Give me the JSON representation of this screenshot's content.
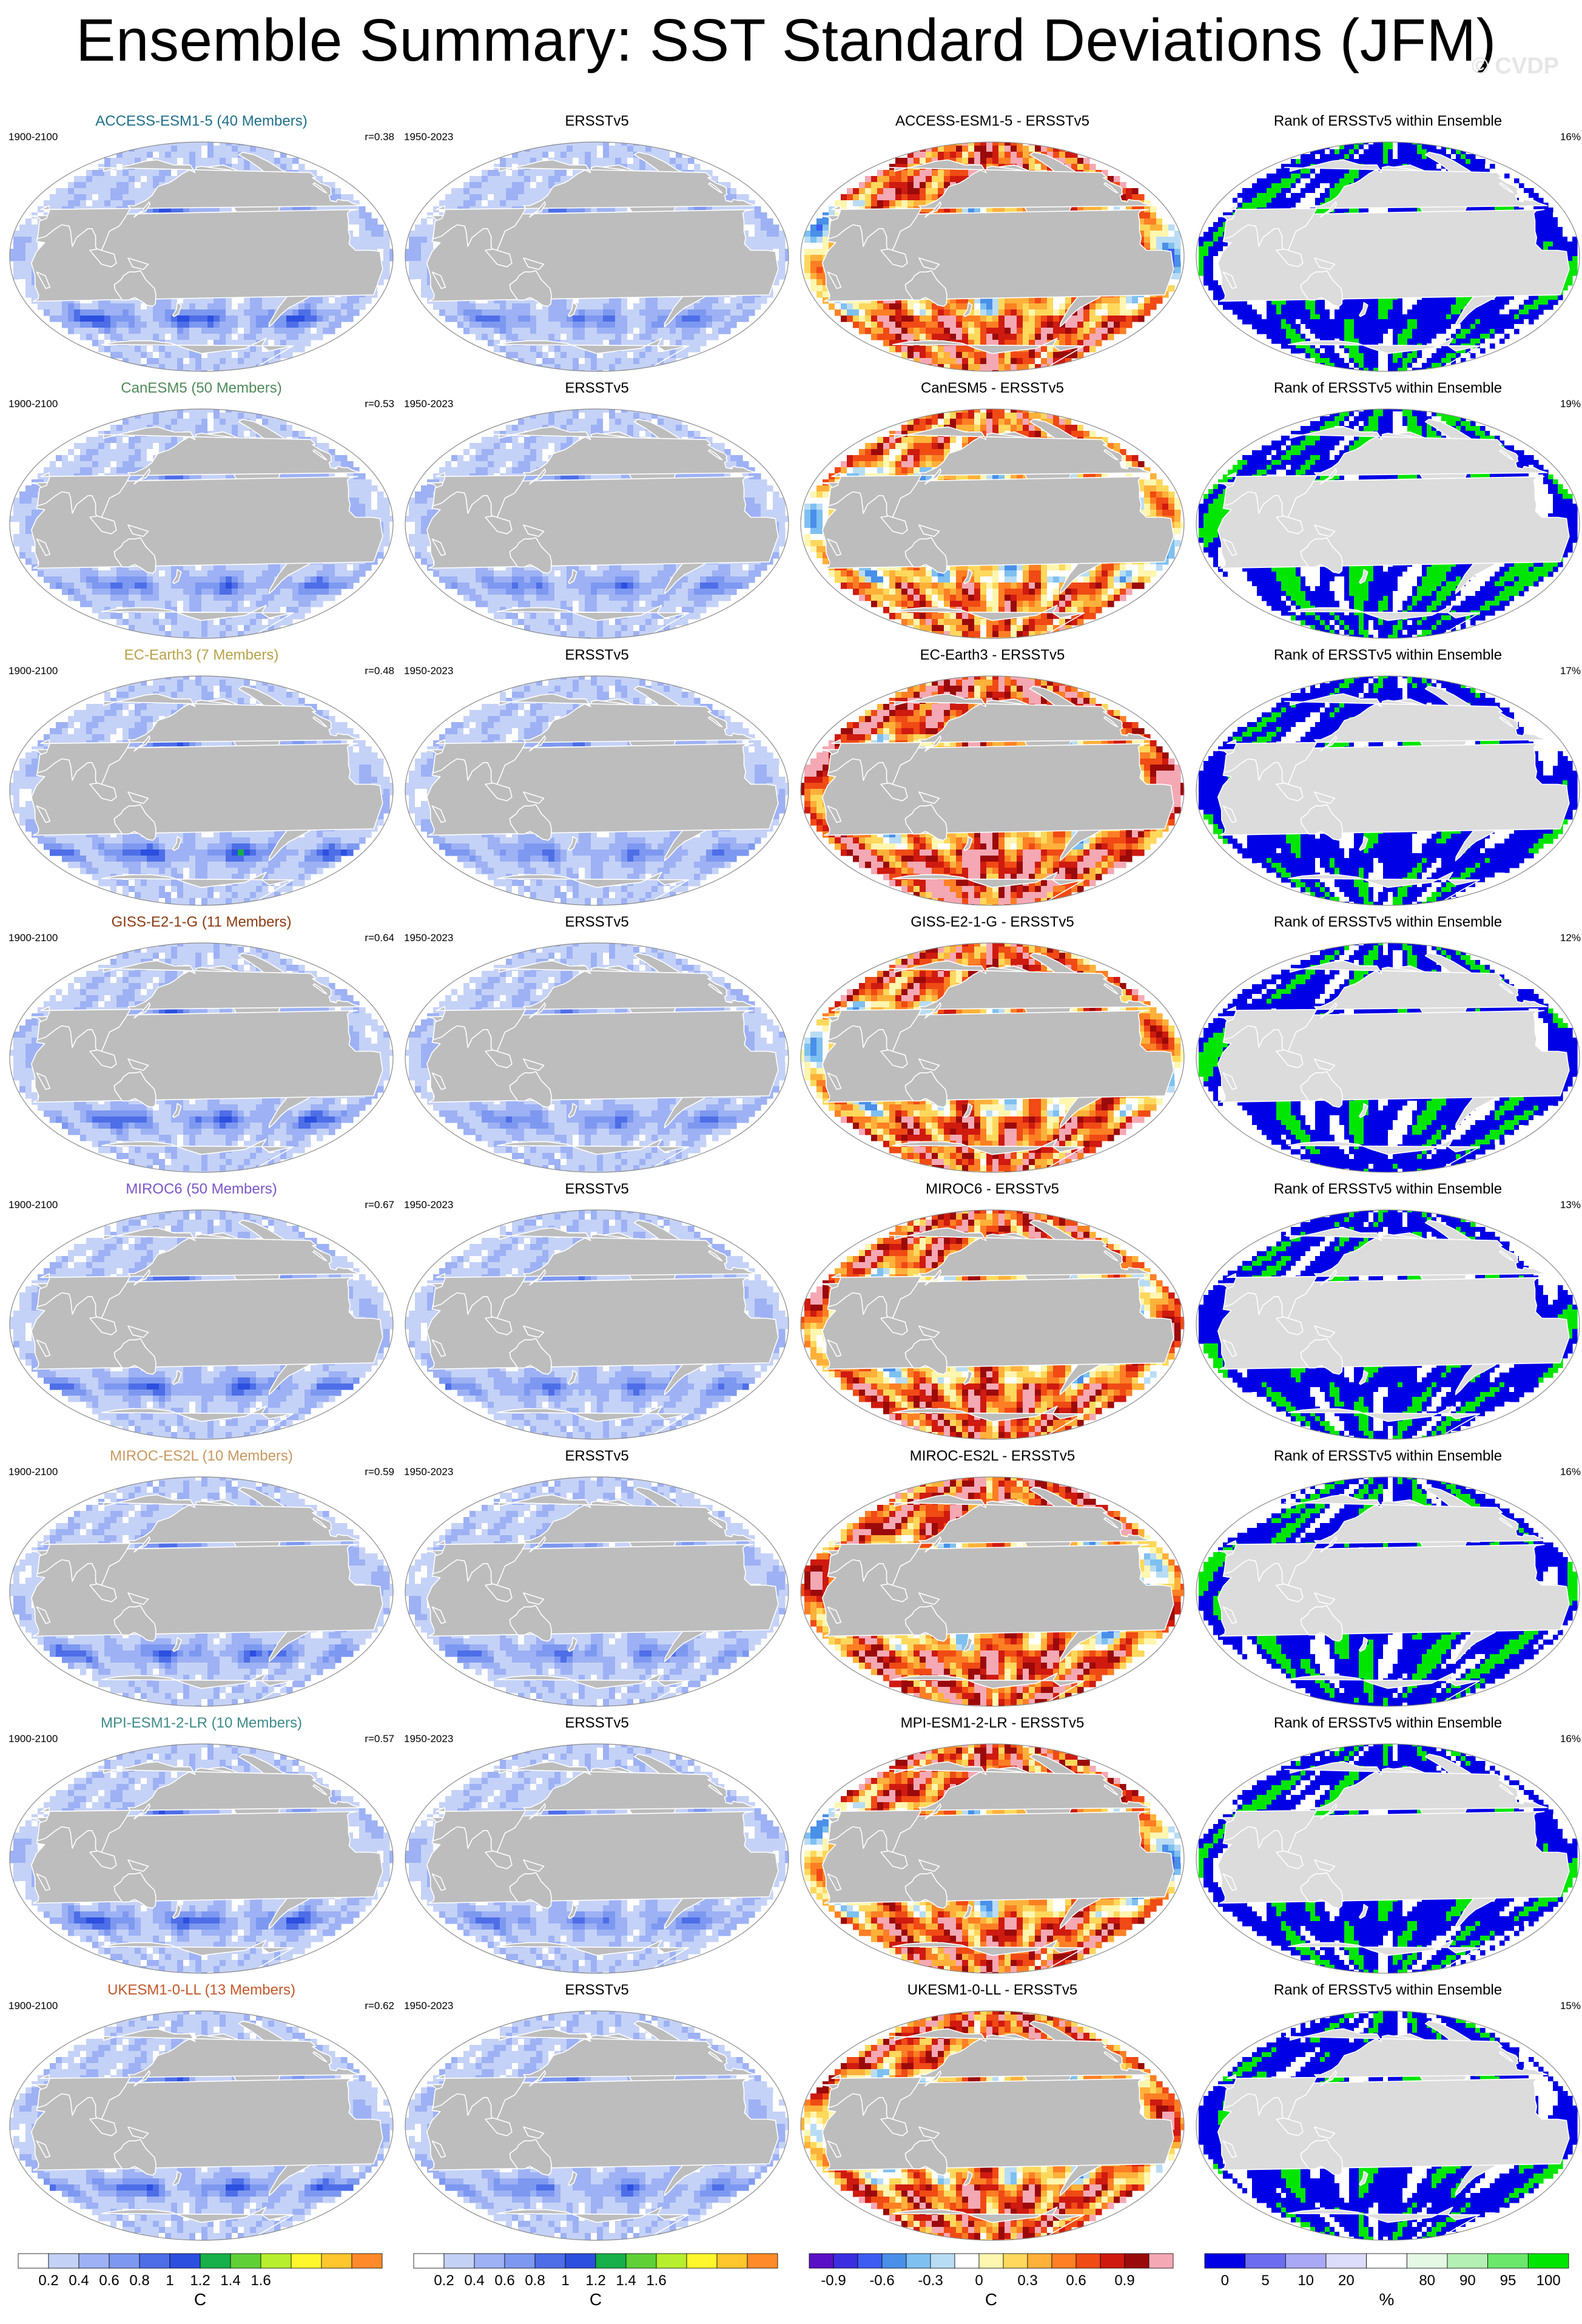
{
  "title": "Ensemble Summary: SST Standard Deviations (JFM)",
  "watermark": "© CVDP",
  "colors": {
    "land": "#bdbdbd",
    "coast": "#ffffff",
    "std_scale": [
      "#ffffff",
      "#c5d2f7",
      "#9db1f4",
      "#7d98f0",
      "#4e6ee8",
      "#2c4fe0",
      "#17b04a",
      "#5fd136",
      "#b7ef2e",
      "#fff72c",
      "#ffc62d",
      "#ff8a2a",
      "#f32a19"
    ],
    "diff_scale": [
      "#5a11c6",
      "#3b2ee0",
      "#3d5cf2",
      "#4a8fe8",
      "#7ec0f0",
      "#b9dcf5",
      "#ffffff",
      "#fff6b0",
      "#ffd85c",
      "#ffb13a",
      "#ff7f24",
      "#f04a15",
      "#cf1a10",
      "#9b0a0a",
      "#f4a8b4"
    ],
    "rank_scale": [
      "#0000e6",
      "#6c6cf0",
      "#a8a8f6",
      "#dcdcfb",
      "#ffffff",
      "#e4f8e4",
      "#b4f0b4",
      "#6be86b",
      "#00e600"
    ]
  },
  "rows": [
    {
      "model": "ACCESS-ESM1-5 (40 Members)",
      "model_short": "ACCESS-ESM1-5",
      "model_color": "#1f6f8b",
      "model_years": "1900-2100",
      "r": "r=0.38",
      "obs_years": "1950-2023",
      "obs_title": "ERSSTv5",
      "diff_title": "ACCESS-ESM1-5 - ERSSTv5",
      "rank_title": "Rank of ERSSTv5 within Ensemble",
      "rank_pct": "16%",
      "amp": 1.0,
      "seed": 11,
      "bias": 0.35,
      "rank_hi": 0.22
    },
    {
      "model": "CanESM5 (50 Members)",
      "model_short": "CanESM5",
      "model_color": "#4f8a5a",
      "model_years": "1900-2100",
      "r": "r=0.53",
      "obs_years": "1950-2023",
      "obs_title": "ERSSTv5",
      "diff_title": "CanESM5 - ERSSTv5",
      "rank_title": "Rank of ERSSTv5 within Ensemble",
      "rank_pct": "19%",
      "amp": 0.78,
      "seed": 23,
      "bias": 0.05,
      "rank_hi": 0.3
    },
    {
      "model": "EC-Earth3 (7 Members)",
      "model_short": "EC-Earth3",
      "model_color": "#b8a24a",
      "model_years": "1900-2100",
      "r": "r=0.48",
      "obs_years": "1950-2023",
      "obs_title": "ERSSTv5",
      "diff_title": "EC-Earth3 - ERSSTv5",
      "rank_title": "Rank of ERSSTv5 within Ensemble",
      "rank_pct": "17%",
      "amp": 1.05,
      "seed": 37,
      "bias": 0.55,
      "rank_hi": 0.18
    },
    {
      "model": "GISS-E2-1-G (11 Members)",
      "model_short": "GISS-E2-1-G",
      "model_color": "#8a3b12",
      "model_years": "1900-2100",
      "r": "r=0.64",
      "obs_years": "1950-2023",
      "obs_title": "ERSSTv5",
      "diff_title": "GISS-E2-1-G - ERSSTv5",
      "rank_title": "Rank of ERSSTv5 within Ensemble",
      "rank_pct": "12%",
      "amp": 0.92,
      "seed": 41,
      "bias": 0.25,
      "rank_hi": 0.16
    },
    {
      "model": "MIROC6 (50 Members)",
      "model_short": "MIROC6",
      "model_color": "#7b55c7",
      "model_years": "1900-2100",
      "r": "r=0.67",
      "obs_years": "1950-2023",
      "obs_title": "ERSSTv5",
      "diff_title": "MIROC6 - ERSSTv5",
      "rank_title": "Rank of ERSSTv5 within Ensemble",
      "rank_pct": "13%",
      "amp": 0.95,
      "seed": 53,
      "bias": 0.3,
      "rank_hi": 0.2
    },
    {
      "model": "MIROC-ES2L (10 Members)",
      "model_short": "MIROC-ES2L",
      "model_color": "#c9975f",
      "model_years": "1900-2100",
      "r": "r=0.59",
      "obs_years": "1950-2023",
      "obs_title": "ERSSTv5",
      "diff_title": "MIROC-ES2L - ERSSTv5",
      "rank_title": "Rank of ERSSTv5 within Ensemble",
      "rank_pct": "16%",
      "amp": 0.9,
      "seed": 67,
      "bias": 0.4,
      "rank_hi": 0.24
    },
    {
      "model": "MPI-ESM1-2-LR (10 Members)",
      "model_short": "MPI-ESM1-2-LR",
      "model_color": "#3e8a8a",
      "model_years": "1900-2100",
      "r": "r=0.57",
      "obs_years": "1950-2023",
      "obs_title": "ERSSTv5",
      "diff_title": "MPI-ESM1-2-LR - ERSSTv5",
      "rank_title": "Rank of ERSSTv5 within Ensemble",
      "rank_pct": "16%",
      "amp": 0.98,
      "seed": 79,
      "bias": 0.3,
      "rank_hi": 0.22
    },
    {
      "model": "UKESM1-0-LL (13 Members)",
      "model_short": "UKESM1-0-LL",
      "model_color": "#c4572a",
      "model_years": "1900-2100",
      "r": "r=0.62",
      "obs_years": "1950-2023",
      "obs_title": "ERSSTv5",
      "diff_title": "UKESM1-0-LL - ERSSTv5",
      "rank_title": "Rank of ERSSTv5 within Ensemble",
      "rank_pct": "15%",
      "amp": 0.93,
      "seed": 89,
      "bias": 0.28,
      "rank_hi": 0.18
    }
  ],
  "colorbars": [
    {
      "kind": "std",
      "labels": [
        "0.2",
        "0.4",
        "0.6",
        "0.8",
        "1",
        "1.2",
        "1.4",
        "1.6"
      ],
      "unit": "C"
    },
    {
      "kind": "std",
      "labels": [
        "0.2",
        "0.4",
        "0.6",
        "0.8",
        "1",
        "1.2",
        "1.4",
        "1.6"
      ],
      "unit": "C"
    },
    {
      "kind": "diff",
      "labels": [
        "-0.9",
        "-0.6",
        "-0.3",
        "0",
        "0.3",
        "0.6",
        "0.9"
      ],
      "unit": "C"
    },
    {
      "kind": "rank",
      "labels": [
        "0",
        "5",
        "10",
        "20",
        "80",
        "90",
        "95",
        "100"
      ],
      "unit": "%"
    }
  ]
}
